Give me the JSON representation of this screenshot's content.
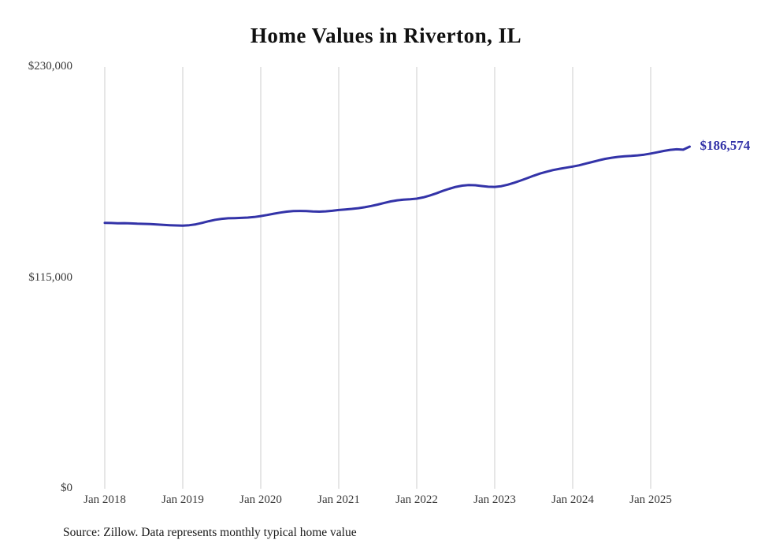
{
  "chart_data": {
    "type": "line",
    "title": "Home Values in Riverton, IL",
    "source": "Source: Zillow. Data represents monthly typical home value",
    "series_name": "Typical home value",
    "frequency": "monthly",
    "start_month": "2018-01",
    "end_month": "2025-07",
    "end_label": "$186,574",
    "end_value": 186574,
    "ylim": [
      0,
      230000
    ],
    "grid": "vertical-only",
    "legend_position": "none",
    "line_color": "#3333a8",
    "grid_color": "#cccccc",
    "y_ticks": [
      {
        "label": "$0",
        "value": 0
      },
      {
        "label": "$115,000",
        "value": 115000
      },
      {
        "label": "$230,000",
        "value": 230000
      }
    ],
    "x_ticks": [
      {
        "label": "Jan 2018",
        "month_index": 0
      },
      {
        "label": "Jan 2019",
        "month_index": 12
      },
      {
        "label": "Jan 2020",
        "month_index": 24
      },
      {
        "label": "Jan 2021",
        "month_index": 36
      },
      {
        "label": "Jan 2022",
        "month_index": 48
      },
      {
        "label": "Jan 2023",
        "month_index": 60
      },
      {
        "label": "Jan 2024",
        "month_index": 72
      },
      {
        "label": "Jan 2025",
        "month_index": 84
      }
    ],
    "values": [
      145000,
      144900,
      144800,
      144850,
      144700,
      144550,
      144450,
      144300,
      144100,
      143900,
      143700,
      143600,
      143500,
      143700,
      144200,
      145000,
      145900,
      146700,
      147200,
      147500,
      147600,
      147700,
      147900,
      148200,
      148700,
      149300,
      150000,
      150600,
      151100,
      151400,
      151500,
      151400,
      151200,
      151100,
      151300,
      151600,
      152000,
      152300,
      152600,
      153000,
      153500,
      154200,
      155000,
      155900,
      156700,
      157300,
      157700,
      157900,
      158200,
      158900,
      159900,
      161100,
      162400,
      163600,
      164600,
      165300,
      165600,
      165500,
      165100,
      164700,
      164600,
      165000,
      165800,
      166900,
      168100,
      169400,
      170700,
      171900,
      172900,
      173800,
      174500,
      175100,
      175700,
      176400,
      177300,
      178200,
      179100,
      179900,
      180500,
      181000,
      181300,
      181500,
      181800,
      182200,
      182800,
      183500,
      184200,
      184800,
      185100,
      184900,
      186574
    ]
  }
}
